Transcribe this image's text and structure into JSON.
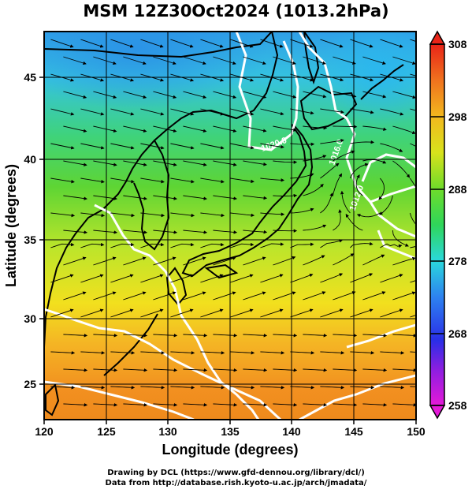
{
  "title": "MSM 12Z30Oct2024 (1013.2hPa)",
  "map": {
    "xlabel": "Longitude (degrees)",
    "ylabel": "Latitude  (degrees)",
    "lon_ticks": [
      "120",
      "125",
      "130",
      "135",
      "140",
      "145",
      "150"
    ],
    "lat_ticks": [
      "25",
      "30",
      "35",
      "40",
      "45"
    ],
    "lon_range": [
      120,
      150
    ],
    "lat_range": [
      22.4,
      47.6
    ],
    "contour_labels": [
      "1020.0",
      "1016.0",
      "1012.0"
    ],
    "colorbar": {
      "ticks": [
        "308",
        "298",
        "288",
        "278",
        "268",
        "258"
      ],
      "range": [
        258,
        308
      ]
    },
    "colors": {
      "sea_warm": "#f08a1c",
      "sea_mid": "#f4e21a",
      "sea_cool": "#3fd438",
      "sea_cold": "#30b6e8",
      "land_outline": "#000000",
      "isobar": "#ffffff"
    }
  },
  "credits": {
    "line1": "Drawing by DCL (https://www.gfd-dennou.org/library/dcl/)",
    "line2": "Data from http://database.rish.kyoto-u.ac.jp/arch/jmadata/"
  }
}
